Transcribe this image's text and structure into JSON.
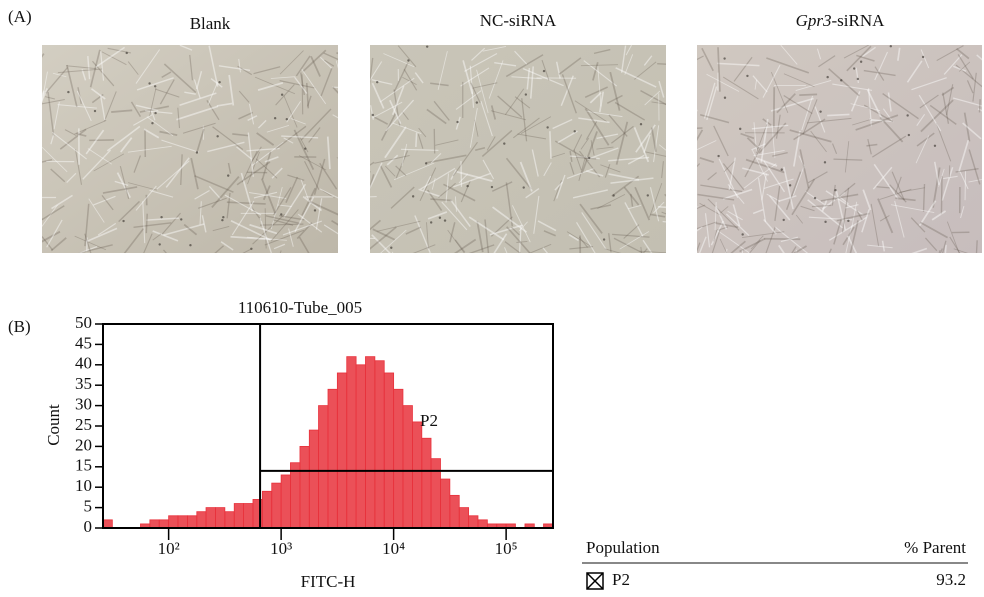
{
  "panels": {
    "a": "(A)",
    "b": "(B)"
  },
  "images": [
    {
      "title": "Blank"
    },
    {
      "title": "NC-siRNA"
    },
    {
      "title_italic": "Gpr3",
      "title": "-siRNA"
    }
  ],
  "chart_data": {
    "type": "histogram",
    "title": "110610-Tube_005",
    "x_label": "FITC-H",
    "y_label": "Count",
    "xscale": "log",
    "color": "#e8313b",
    "bins": [
      26.1,
      31.6,
      38.3,
      46.4,
      56.2,
      68.1,
      82.5,
      100,
      121,
      147,
      178,
      215,
      261,
      316,
      383,
      464,
      562,
      681,
      825,
      1000,
      1210,
      1470,
      1780,
      2150,
      2610,
      3160,
      3830,
      4640,
      5620,
      6810,
      8250,
      10000,
      12100,
      14700,
      17800,
      21500,
      26100,
      31600,
      38300,
      46400,
      56200,
      68100,
      82500,
      100000,
      121000,
      147000,
      178000,
      215000,
      261000
    ],
    "values": [
      2,
      0,
      0,
      0,
      1,
      2,
      2,
      3,
      3,
      3,
      4,
      5,
      5,
      4,
      6,
      6,
      7,
      9,
      11,
      13,
      16,
      20,
      24,
      30,
      34,
      38,
      42,
      40,
      42,
      41,
      38,
      34,
      30,
      26,
      22,
      17,
      12,
      8,
      5,
      3,
      2,
      1,
      1,
      1,
      0,
      1,
      0,
      1
    ],
    "xlim": [
      26.1,
      261000
    ],
    "ylim": [
      0,
      50
    ],
    "xticks": [
      {
        "value": 100,
        "label": "10²"
      },
      {
        "value": 1000,
        "label": "10³"
      },
      {
        "value": 10000,
        "label": "10⁴"
      },
      {
        "value": 100000,
        "label": "10⁵"
      }
    ],
    "yticks": [
      0,
      5,
      10,
      15,
      20,
      25,
      30,
      35,
      40,
      45,
      50
    ],
    "gate": {
      "label": "P2",
      "x_min": 650,
      "y": 14
    }
  },
  "table": {
    "header": [
      "Population",
      "% Parent"
    ],
    "rows": [
      [
        "P2",
        "93.2"
      ]
    ]
  }
}
